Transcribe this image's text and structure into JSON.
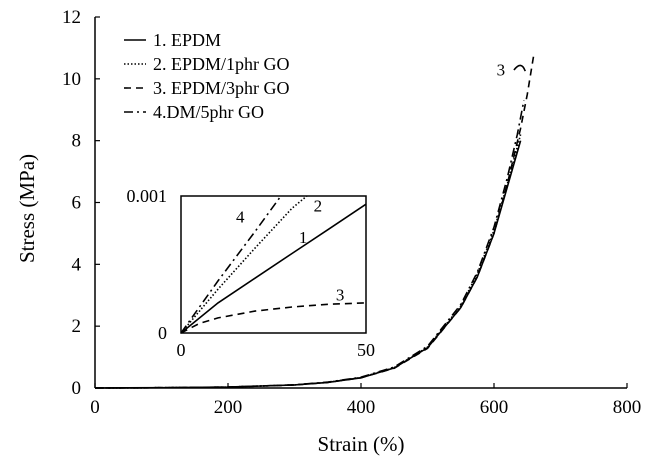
{
  "chart_data": [
    {
      "type": "line",
      "xlabel": "Strain (%)",
      "ylabel": "Stress (MPa)",
      "xlim": [
        0,
        800
      ],
      "ylim": [
        0,
        12
      ],
      "xticks": [
        "0",
        "200",
        "400",
        "600",
        "800"
      ],
      "yticks": [
        "0",
        "2",
        "4",
        "6",
        "8",
        "10",
        "12"
      ],
      "grid": false,
      "legend_position": "top-left",
      "series": [
        {
          "name": "1. EPDM",
          "dash": "solid",
          "x": [
            0,
            100,
            200,
            300,
            350,
            400,
            450,
            500,
            550,
            575,
            600,
            620,
            640
          ],
          "y": [
            0,
            0.01,
            0.03,
            0.1,
            0.18,
            0.33,
            0.65,
            1.3,
            2.6,
            3.6,
            5.0,
            6.5,
            8.0
          ]
        },
        {
          "name": "2. EPDM/1phr GO",
          "dash": "dotted",
          "x": [
            0,
            100,
            200,
            300,
            350,
            400,
            450,
            500,
            550,
            575,
            600,
            620,
            640
          ],
          "y": [
            0,
            0.01,
            0.03,
            0.1,
            0.18,
            0.34,
            0.66,
            1.32,
            2.65,
            3.7,
            5.1,
            6.6,
            8.2
          ]
        },
        {
          "name": "3. EPDM/3phr GO",
          "dash": "dashed",
          "x": [
            0,
            100,
            200,
            300,
            350,
            400,
            450,
            500,
            550,
            575,
            600,
            620,
            640,
            650,
            660
          ],
          "y": [
            0,
            0.01,
            0.03,
            0.1,
            0.18,
            0.33,
            0.64,
            1.28,
            2.6,
            3.6,
            5.0,
            6.6,
            8.4,
            9.5,
            10.8
          ]
        },
        {
          "name": "4.DM/5phr GO",
          "dash": "dashdot",
          "x": [
            0,
            100,
            200,
            300,
            350,
            400,
            450,
            500,
            550,
            575,
            600,
            620,
            635,
            645
          ],
          "y": [
            0,
            0.01,
            0.03,
            0.1,
            0.19,
            0.35,
            0.68,
            1.35,
            2.7,
            3.75,
            5.2,
            6.8,
            8.2,
            9.3
          ]
        }
      ],
      "annotations": [
        {
          "text": "3",
          "x": 628,
          "y": 10.3
        }
      ]
    },
    {
      "type": "line",
      "inset": true,
      "xlim": [
        0,
        50
      ],
      "ylim": [
        0,
        0.001
      ],
      "xticks": [
        "0",
        "50"
      ],
      "yticks": [
        "0",
        "0.001"
      ],
      "series": [
        {
          "label": "1",
          "dash": "solid",
          "x": [
            0,
            10,
            20,
            30,
            40,
            50
          ],
          "y": [
            0,
            0.00022,
            0.0004,
            0.00058,
            0.00076,
            0.00094
          ]
        },
        {
          "label": "2",
          "dash": "dotted",
          "x": [
            0,
            10,
            20,
            30,
            34
          ],
          "y": [
            0,
            0.00032,
            0.00062,
            0.00091,
            0.001
          ]
        },
        {
          "label": "3",
          "dash": "dashed",
          "x": [
            0,
            5,
            10,
            20,
            30,
            40,
            50
          ],
          "y": [
            0,
            7e-05,
            0.00011,
            0.00016,
            0.00019,
            0.00021,
            0.00022
          ]
        },
        {
          "label": "4",
          "dash": "dashdot",
          "x": [
            0,
            10,
            20,
            27
          ],
          "y": [
            0,
            0.00038,
            0.00074,
            0.001
          ]
        }
      ],
      "curve_labels": [
        {
          "text": "4",
          "x": 16,
          "y": 0.00085
        },
        {
          "text": "2",
          "x": 37,
          "y": 0.00093
        },
        {
          "text": "1",
          "x": 33,
          "y": 0.0007
        },
        {
          "text": "3",
          "x": 43,
          "y": 0.00028
        }
      ]
    }
  ]
}
